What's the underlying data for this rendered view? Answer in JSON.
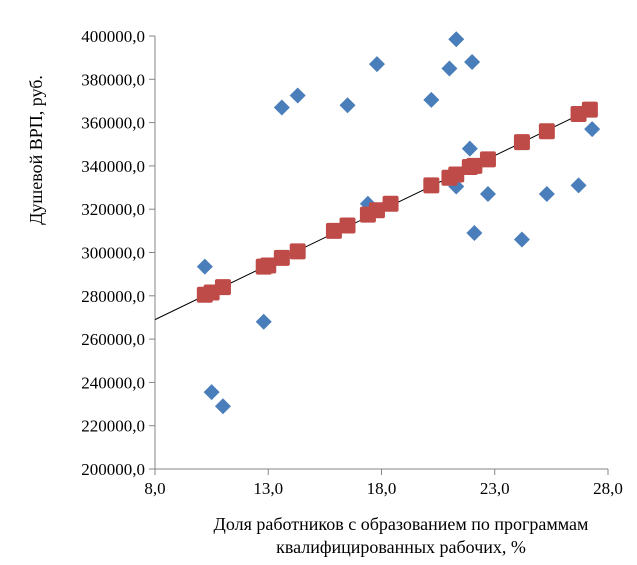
{
  "chart_data": {
    "type": "scatter",
    "title": "",
    "ylabel": "Душевой ВРП, руб.",
    "xlabel_lines": [
      "Доля работников с образованием по программам",
      "квалифицированных рабочих, %"
    ],
    "xlim": [
      8.0,
      28.0
    ],
    "ylim": [
      200000,
      400000
    ],
    "x_ticks": [
      "8,0",
      "13,0",
      "18,0",
      "23,0",
      "28,0"
    ],
    "y_ticks": [
      "200000,0",
      "220000,0",
      "240000,0",
      "260000,0",
      "280000,0",
      "300000,0",
      "320000,0",
      "340000,0",
      "360000,0",
      "380000,0",
      "400000,0"
    ],
    "grid": false,
    "legend": "none",
    "series": [
      {
        "marker": "diamond",
        "color": "#4a7ebb",
        "points": [
          [
            10.2,
            293500
          ],
          [
            10.5,
            235500
          ],
          [
            11.0,
            229000
          ],
          [
            12.8,
            268000
          ],
          [
            13.6,
            367000
          ],
          [
            14.3,
            372500
          ],
          [
            16.5,
            368000
          ],
          [
            17.4,
            322500
          ],
          [
            17.8,
            387000
          ],
          [
            20.2,
            370500
          ],
          [
            21.0,
            385000
          ],
          [
            21.3,
            398500
          ],
          [
            21.3,
            330500
          ],
          [
            21.9,
            348000
          ],
          [
            22.0,
            388000
          ],
          [
            22.1,
            309000
          ],
          [
            22.7,
            327000
          ],
          [
            24.2,
            306000
          ],
          [
            25.3,
            327000
          ],
          [
            26.7,
            331000
          ],
          [
            27.3,
            357000
          ]
        ]
      },
      {
        "marker": "square",
        "color": "#be4b48",
        "points": [
          [
            10.2,
            280500
          ],
          [
            10.5,
            281500
          ],
          [
            11.0,
            284000
          ],
          [
            12.8,
            293500
          ],
          [
            13.0,
            294000
          ],
          [
            13.6,
            297500
          ],
          [
            14.3,
            300500
          ],
          [
            15.9,
            310000
          ],
          [
            16.5,
            312500
          ],
          [
            17.4,
            317500
          ],
          [
            17.8,
            319500
          ],
          [
            18.4,
            322500
          ],
          [
            20.2,
            331000
          ],
          [
            21.0,
            334500
          ],
          [
            21.3,
            336000
          ],
          [
            21.9,
            339500
          ],
          [
            22.1,
            340000
          ],
          [
            22.7,
            343000
          ],
          [
            24.2,
            351000
          ],
          [
            25.3,
            356000
          ],
          [
            26.7,
            364000
          ],
          [
            27.2,
            366000
          ]
        ]
      }
    ],
    "trendline": {
      "x": [
        8.0,
        27.2
      ],
      "y": [
        269000,
        366000
      ],
      "color": "#000000"
    }
  }
}
